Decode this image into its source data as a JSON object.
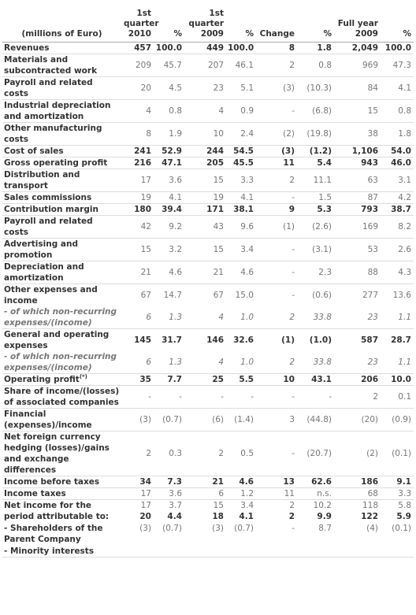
{
  "header": {
    "label": "(millions of Euro)",
    "cols": [
      "1st quarter 2010",
      "%",
      "1st quarter 2009",
      "%",
      "Change",
      "%",
      "Full year 2009",
      "%"
    ]
  },
  "rows": [
    {
      "label": "Revenues",
      "v": [
        "457",
        "100.0",
        "449",
        "100.0",
        "8",
        "1.8",
        "2,049",
        "100.0"
      ],
      "s": "b"
    },
    {
      "label": "Materials and subcontracted work",
      "v": [
        "209",
        "45.7",
        "207",
        "46.1",
        "2",
        "0.8",
        "969",
        "47.3"
      ],
      "s": ""
    },
    {
      "label": "Payroll and related costs",
      "v": [
        "20",
        "4.5",
        "23",
        "5.1",
        "(3)",
        "(10.3)",
        "84",
        "4.1"
      ],
      "s": ""
    },
    {
      "label": "Industrial depreciation and amortization",
      "v": [
        "4",
        "0.8",
        "4",
        "0.9",
        "-",
        "(6.8)",
        "15",
        "0.8"
      ],
      "s": ""
    },
    {
      "label": "Other manufacturing costs",
      "v": [
        "8",
        "1.9",
        "10",
        "2.4",
        "(2)",
        "(19.8)",
        "38",
        "1.8"
      ],
      "s": ""
    },
    {
      "label": "Cost of sales",
      "v": [
        "241",
        "52.9",
        "244",
        "54.5",
        "(3)",
        "(1.2)",
        "1,106",
        "54.0"
      ],
      "s": "b"
    },
    {
      "label": "Gross operating profit",
      "v": [
        "216",
        "47.1",
        "205",
        "45.5",
        "11",
        "5.4",
        "943",
        "46.0"
      ],
      "s": "b"
    },
    {
      "label": "Distribution and transport",
      "v": [
        "17",
        "3.6",
        "15",
        "3.3",
        "2",
        "11.1",
        "63",
        "3.1"
      ],
      "s": ""
    },
    {
      "label": "Sales commissions",
      "v": [
        "19",
        "4.1",
        "19",
        "4.1",
        "-",
        "1.5",
        "87",
        "4.2"
      ],
      "s": ""
    },
    {
      "label": "Contribution margin",
      "v": [
        "180",
        "39.4",
        "171",
        "38.1",
        "9",
        "5.3",
        "793",
        "38.7"
      ],
      "s": "b"
    },
    {
      "label": "Payroll and related costs",
      "v": [
        "42",
        "9.2",
        "43",
        "9.6",
        "(1)",
        "(2.6)",
        "169",
        "8.2"
      ],
      "s": ""
    },
    {
      "label": "Advertising and promotion",
      "v": [
        "15",
        "3.2",
        "15",
        "3.4",
        "-",
        "(3.1)",
        "53",
        "2.6"
      ],
      "s": ""
    },
    {
      "label": "Depreciation and amortization",
      "v": [
        "21",
        "4.6",
        "21",
        "4.6",
        "-",
        "2.3",
        "88",
        "4.3"
      ],
      "s": ""
    },
    {
      "label": "Other expenses and income",
      "v": [
        "67",
        "14.7",
        "67",
        "15.0",
        "-",
        "(0.6)",
        "277",
        "13.6"
      ],
      "s": "nb"
    },
    {
      "label": "- of which non-recurring expenses/(income)",
      "v": [
        "6",
        "1.3",
        "4",
        "1.0",
        "2",
        "33.8",
        "23",
        "1.1"
      ],
      "s": "i"
    },
    {
      "label": "General and operating expenses",
      "v": [
        "145",
        "31.7",
        "146",
        "32.6",
        "(1)",
        "(1.0)",
        "587",
        "28.7"
      ],
      "s": "b nb"
    },
    {
      "label": "- of which non-recurring expenses/(income)",
      "v": [
        "6",
        "1.3",
        "4",
        "1.0",
        "2",
        "33.8",
        "23",
        "1.1"
      ],
      "s": "i"
    },
    {
      "label": "Operating profit",
      "sup": "(*)",
      "v": [
        "35",
        "7.7",
        "25",
        "5.5",
        "10",
        "43.1",
        "206",
        "10.0"
      ],
      "s": "b"
    },
    {
      "label": "Share of income/(losses) of associated companies",
      "v": [
        "-",
        "-",
        "-",
        "-",
        "-",
        "-",
        "2",
        "0.1"
      ],
      "s": ""
    },
    {
      "label": "Financial (expenses)/income",
      "v": [
        "(3)",
        "(0.7)",
        "(6)",
        "(1.4)",
        "3",
        "(44.8)",
        "(20)",
        "(0.9)"
      ],
      "s": ""
    },
    {
      "label": "Net foreign currency hedging (losses)/gains and exchange differences",
      "v": [
        "2",
        "0.3",
        "2",
        "0.5",
        "-",
        "(20.7)",
        "(2)",
        "(0.1)"
      ],
      "s": ""
    },
    {
      "label": "Income before taxes",
      "v": [
        "34",
        "7.3",
        "21",
        "4.6",
        "13",
        "62.6",
        "186",
        "9.1"
      ],
      "s": "b"
    },
    {
      "label": "Income taxes",
      "v": [
        "17",
        "3.6",
        "6",
        "1.2",
        "11",
        "n.s.",
        "68",
        "3.3"
      ],
      "s": ""
    }
  ],
  "final": {
    "lines": [
      "Net income for the period attributable to:",
      "- Shareholders of the Parent Company",
      "- Minority interests"
    ],
    "total": [
      "17",
      "3.7",
      "15",
      "3.4",
      "2",
      "10.2",
      "118",
      "5.8"
    ],
    "parent": [
      "20",
      "4.4",
      "18",
      "4.1",
      "2",
      "9.9",
      "122",
      "5.9"
    ],
    "minority": [
      "(3)",
      "(0.7)",
      "(3)",
      "(0.7)",
      "-",
      "8.7",
      "(4)",
      "(0.1)"
    ]
  }
}
